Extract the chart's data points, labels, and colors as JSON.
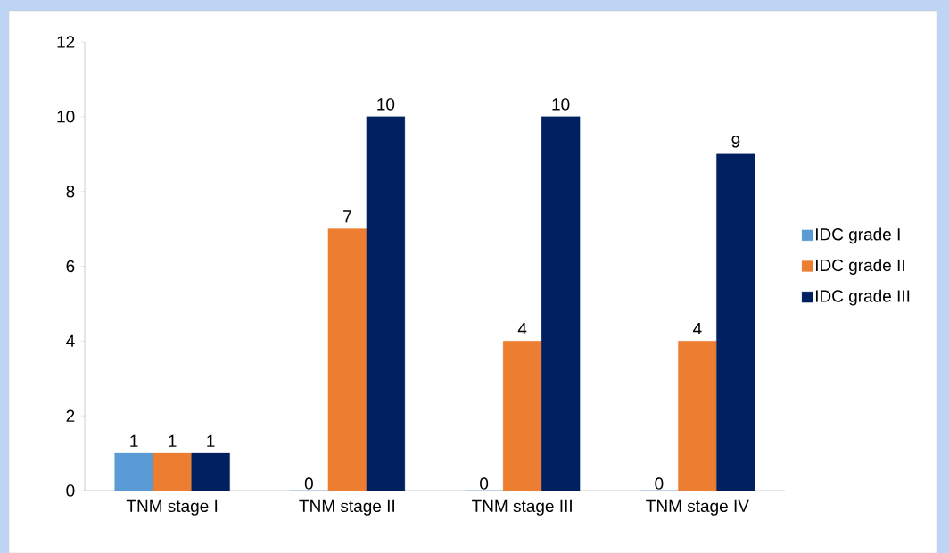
{
  "chart_data": {
    "type": "bar",
    "categories": [
      "TNM stage I",
      "TNM stage II",
      "TNM stage III",
      "TNM stage IV"
    ],
    "series": [
      {
        "name": "IDC grade I",
        "color": "#5b9bd5",
        "values": [
          1,
          0,
          0,
          0
        ]
      },
      {
        "name": "IDC grade II",
        "color": "#ed7d31",
        "values": [
          1,
          7,
          4,
          4
        ]
      },
      {
        "name": "IDC grade III",
        "color": "#002060",
        "values": [
          1,
          10,
          10,
          9
        ]
      }
    ],
    "ylim": [
      0,
      12
    ],
    "yticks": [
      0,
      2,
      4,
      6,
      8,
      10,
      12
    ],
    "data_labels": true,
    "legend": "right",
    "grid": false
  }
}
